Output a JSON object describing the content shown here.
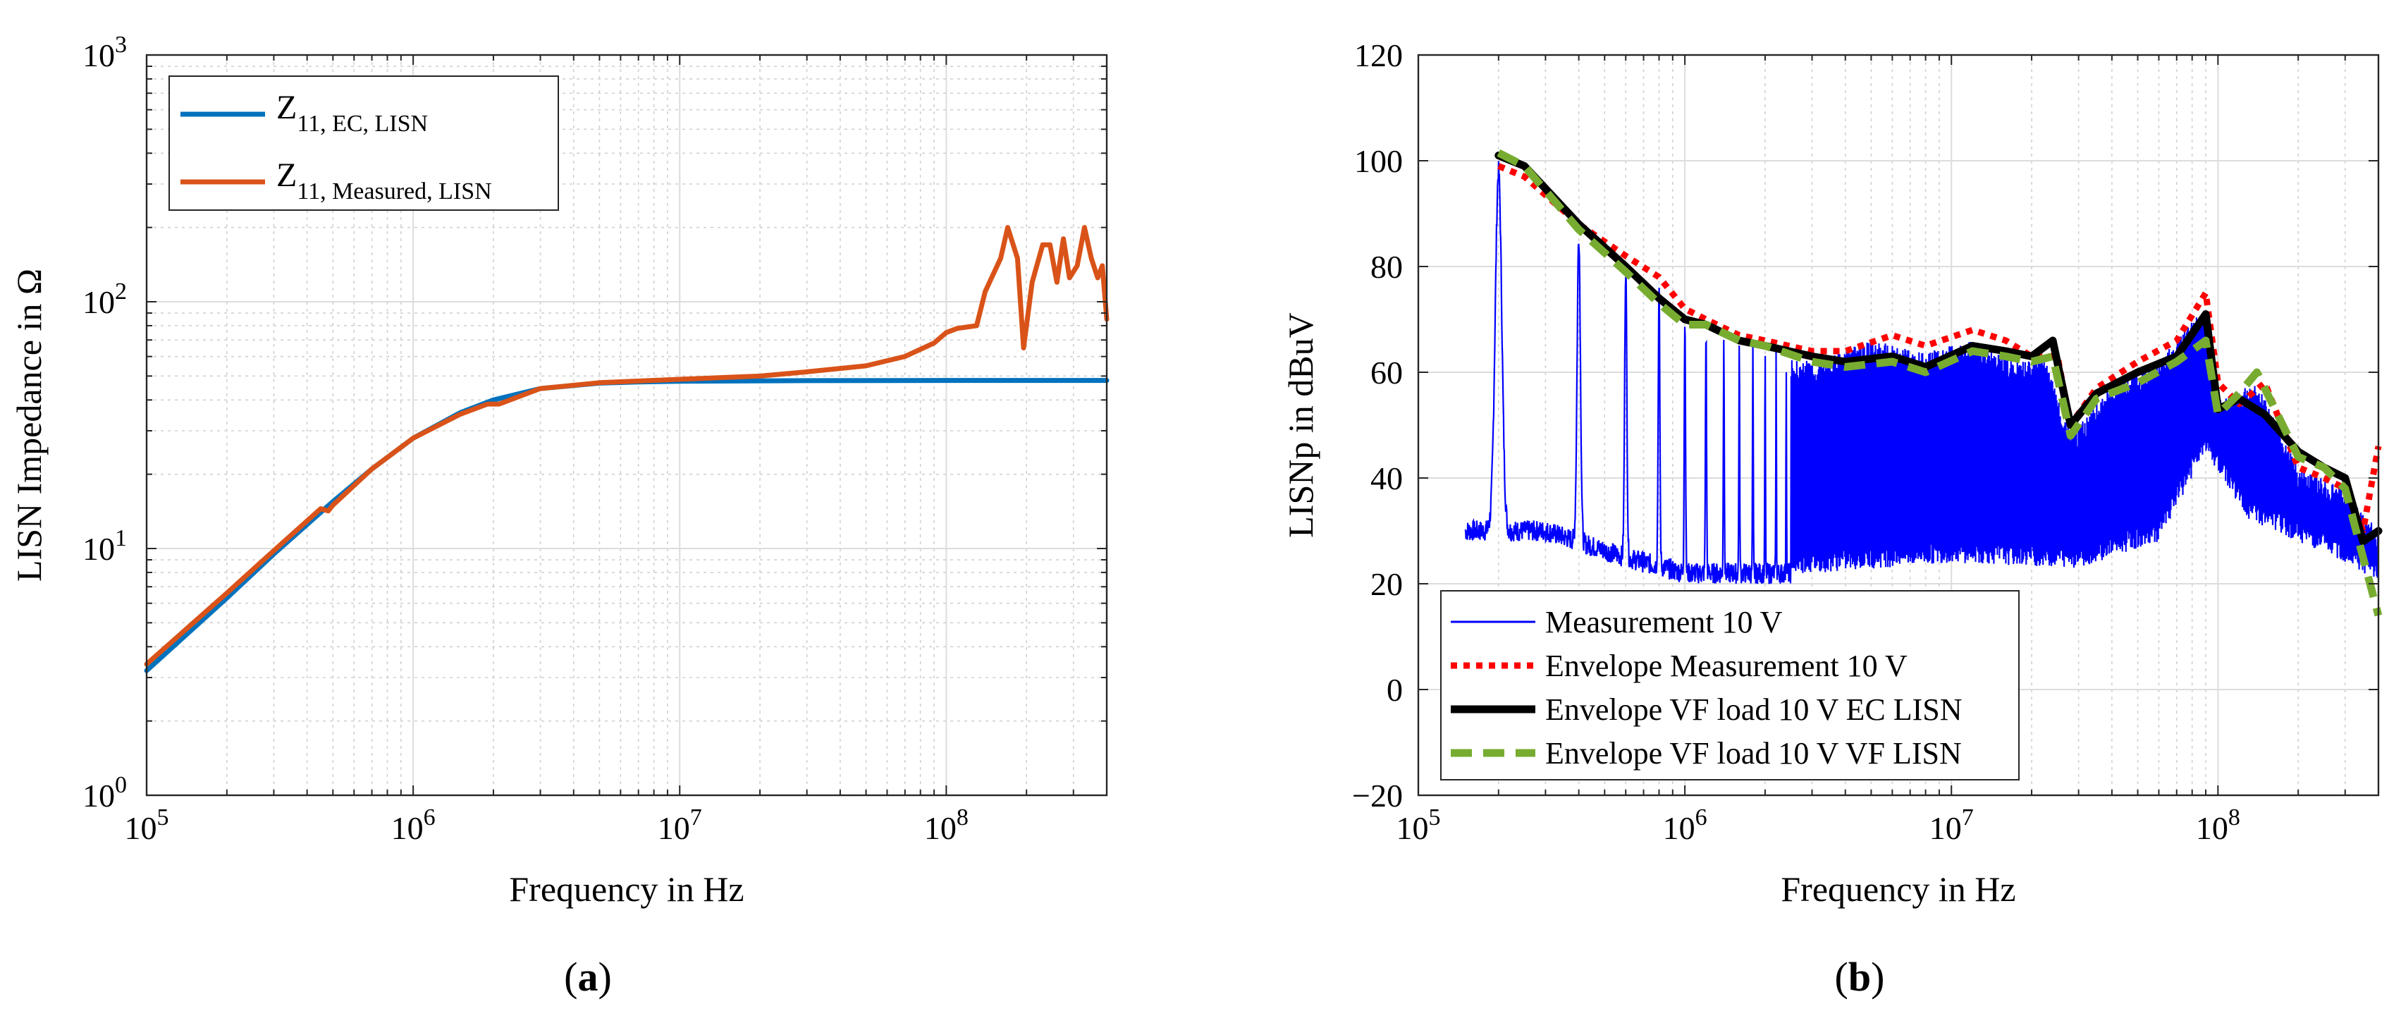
{
  "chart_data": [
    {
      "type": "line",
      "panel_label": "(a)",
      "xlabel": "Frequency in Hz",
      "ylabel": "LISN Impedance in Ω",
      "xscale": "log",
      "yscale": "log",
      "xlim": [
        100000,
        400000000
      ],
      "ylim": [
        1,
        1000
      ],
      "xticks": [
        {
          "value": 100000,
          "base": "10",
          "exp": "5"
        },
        {
          "value": 1000000,
          "base": "10",
          "exp": "6"
        },
        {
          "value": 10000000,
          "base": "10",
          "exp": "7"
        },
        {
          "value": 100000000,
          "base": "10",
          "exp": "8"
        }
      ],
      "yticks": [
        {
          "value": 1,
          "base": "10",
          "exp": "0"
        },
        {
          "value": 10,
          "base": "10",
          "exp": "1"
        },
        {
          "value": 100,
          "base": "10",
          "exp": "2"
        },
        {
          "value": 1000,
          "base": "10",
          "exp": "3"
        }
      ],
      "grid": true,
      "legend_position": "top-left",
      "series": [
        {
          "name": "Z",
          "name_sub": "11, EC, LISN",
          "color": "#0072BD",
          "x": [
            100000,
            200000,
            300000,
            500000,
            700000,
            1000000,
            1500000,
            2000000,
            3000000,
            5000000,
            7000000,
            10000000,
            30000000,
            100000000,
            400000000
          ],
          "y": [
            3.2,
            6.3,
            9.5,
            15.5,
            21,
            28,
            35.5,
            40,
            44.5,
            46.8,
            47.3,
            47.6,
            47.9,
            48,
            48
          ]
        },
        {
          "name": "Z",
          "name_sub": "11, Measured, LISN",
          "color": "#D95319",
          "x": [
            100000,
            200000,
            300000,
            450000,
            480000,
            500000,
            700000,
            1000000,
            1500000,
            1900000,
            2100000,
            3000000,
            5000000,
            10000000,
            20000000,
            30000000,
            50000000,
            70000000,
            90000000,
            100000000,
            110000000,
            130000000,
            140000000,
            160000000,
            170000000,
            185000000,
            195000000,
            210000000,
            230000000,
            245000000,
            260000000,
            275000000,
            290000000,
            310000000,
            330000000,
            350000000,
            370000000,
            385000000,
            400000000
          ],
          "y": [
            3.4,
            6.6,
            9.8,
            14.5,
            14.2,
            15,
            21,
            28,
            35,
            38.5,
            38.5,
            44.5,
            47,
            48.5,
            50,
            52,
            55,
            60,
            68,
            75,
            78,
            80,
            110,
            150,
            200,
            150,
            65,
            120,
            170,
            170,
            120,
            180,
            125,
            140,
            200,
            150,
            125,
            140,
            85
          ]
        }
      ]
    },
    {
      "type": "line",
      "panel_label": "(b)",
      "xlabel": "Frequency in Hz",
      "ylabel": "LISNp in dBuV",
      "xscale": "log",
      "yscale": "linear",
      "xlim": [
        100000,
        400000000
      ],
      "ylim": [
        -20,
        120
      ],
      "xticks": [
        {
          "value": 100000,
          "base": "10",
          "exp": "5"
        },
        {
          "value": 1000000,
          "base": "10",
          "exp": "6"
        },
        {
          "value": 10000000,
          "base": "10",
          "exp": "7"
        },
        {
          "value": 100000000,
          "base": "10",
          "exp": "8"
        }
      ],
      "yticks": [
        "−20",
        "0",
        "20",
        "40",
        "60",
        "80",
        "100",
        "120"
      ],
      "ytick_values": [
        -20,
        0,
        20,
        40,
        60,
        80,
        100,
        120
      ],
      "grid": true,
      "legend_position": "bottom-left",
      "series": [
        {
          "name": "Measurement 10 V",
          "color": "#0000FF",
          "style": "solid-thin",
          "peaks": [
            [
              200000,
              98
            ],
            [
              400000,
              86
            ],
            [
              600000,
              80
            ],
            [
              800000,
              75
            ],
            [
              1000000,
              70
            ],
            [
              1200000,
              68
            ],
            [
              1400000,
              66
            ],
            [
              1600000,
              65
            ],
            [
              2000000,
              64
            ],
            [
              3000000,
              62
            ],
            [
              5000000,
              66
            ],
            [
              8000000,
              64
            ],
            [
              12000000,
              66
            ],
            [
              18000000,
              62
            ],
            [
              22000000,
              64
            ],
            [
              28000000,
              48
            ],
            [
              40000000,
              58
            ],
            [
              60000000,
              62
            ],
            [
              80000000,
              70
            ],
            [
              90000000,
              72
            ],
            [
              100000000,
              55
            ],
            [
              140000000,
              58
            ],
            [
              200000000,
              42
            ],
            [
              300000000,
              38
            ],
            [
              400000000,
              30
            ]
          ],
          "floor": [
            [
              150000,
              30
            ],
            [
              300000,
              30
            ],
            [
              600000,
              25
            ],
            [
              1000000,
              22
            ],
            [
              3000000,
              22
            ],
            [
              10000000,
              24
            ],
            [
              30000000,
              23
            ],
            [
              60000000,
              28
            ],
            [
              90000000,
              45
            ],
            [
              130000000,
              32
            ],
            [
              200000000,
              28
            ],
            [
              300000000,
              24
            ],
            [
              400000000,
              20
            ]
          ]
        },
        {
          "name": "Envelope Measurement 10 V",
          "color": "#FF0000",
          "style": "dotted",
          "x": [
            200000,
            250000,
            400000,
            600000,
            800000,
            1000000,
            1200000,
            1600000,
            2000000,
            3000000,
            4000000,
            6000000,
            8000000,
            12000000,
            16000000,
            20000000,
            25000000,
            28000000,
            35000000,
            50000000,
            70000000,
            90000000,
            100000000,
            120000000,
            150000000,
            200000000,
            250000000,
            300000000,
            350000000,
            400000000
          ],
          "y": [
            99,
            97,
            88,
            82,
            78,
            72,
            70,
            67,
            66,
            64,
            64,
            67,
            65,
            68,
            66,
            63,
            63,
            50,
            57,
            62,
            66,
            75,
            58,
            54,
            58,
            42,
            40,
            38,
            30,
            46
          ]
        },
        {
          "name": "Envelope VF load 10 V EC LISN",
          "color": "#000000",
          "style": "solid-thick",
          "x": [
            200000,
            250000,
            400000,
            600000,
            800000,
            1000000,
            1200000,
            1600000,
            2000000,
            3000000,
            4000000,
            6000000,
            8000000,
            12000000,
            16000000,
            20000000,
            24000000,
            28000000,
            35000000,
            50000000,
            70000000,
            90000000,
            100000000,
            120000000,
            150000000,
            200000000,
            250000000,
            300000000,
            350000000,
            400000000
          ],
          "y": [
            101,
            99,
            88,
            80,
            74,
            70,
            69,
            66,
            65,
            63,
            62,
            63,
            61,
            65,
            64,
            63,
            66,
            50,
            56,
            60,
            63,
            71,
            53,
            55,
            52,
            45,
            42,
            40,
            28,
            30
          ]
        },
        {
          "name": "Envelope VF load 10 V VF LISN",
          "color": "#77AC30",
          "style": "dashed",
          "x": [
            200000,
            250000,
            400000,
            600000,
            800000,
            1000000,
            1200000,
            1600000,
            2000000,
            3000000,
            4000000,
            6000000,
            8000000,
            12000000,
            16000000,
            20000000,
            24000000,
            28000000,
            35000000,
            50000000,
            70000000,
            90000000,
            100000000,
            120000000,
            140000000,
            200000000,
            250000000,
            300000000,
            350000000,
            400000000
          ],
          "y": [
            101.5,
            99,
            87,
            79,
            73,
            69,
            69,
            66,
            65,
            62,
            61,
            62,
            60,
            64,
            63,
            62,
            63,
            48,
            55,
            58,
            62,
            66,
            52,
            56,
            60,
            44,
            42,
            38,
            25,
            14
          ]
        }
      ]
    }
  ]
}
